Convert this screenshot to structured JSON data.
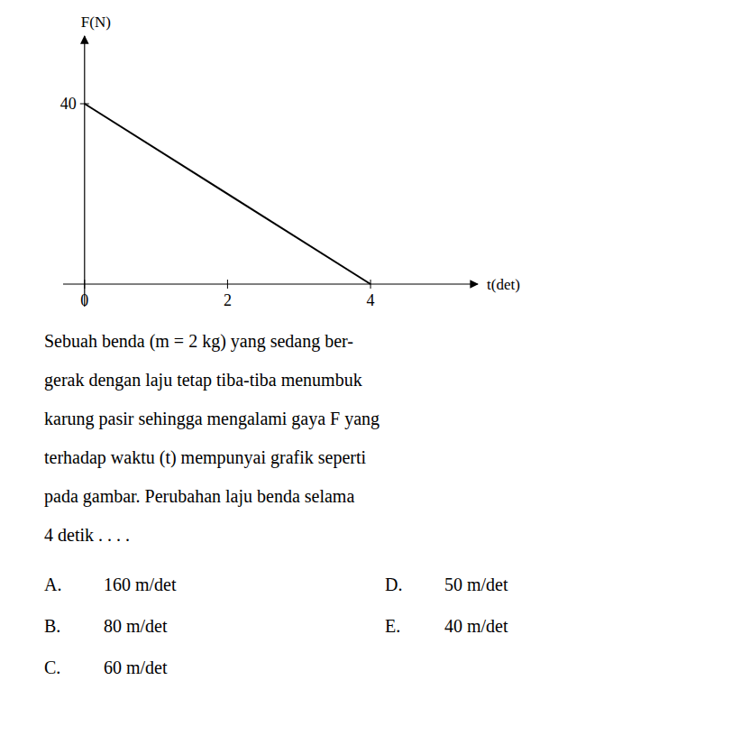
{
  "chart_data": {
    "type": "line",
    "x": [
      0,
      4
    ],
    "values": [
      40,
      0
    ],
    "color": "#000000",
    "xlabel": "t(det)",
    "ylabel": "F(N)",
    "xlim": [
      -0.3,
      5.5
    ],
    "ylim": [
      -5,
      55
    ],
    "xticks": [
      0,
      2,
      4
    ],
    "yticks": [
      40
    ],
    "grid": false,
    "annotations": {
      "paragraph": [
        "Sebuah benda (m = 2 kg) yang sedang ber-",
        "gerak dengan laju tetap tiba-tiba menumbuk",
        "karung pasir sehingga mengalami gaya F yang",
        "terhadap waktu (t) mempunyai grafik seperti",
        "pada gambar. Perubahan laju benda selama",
        "4 detik . . . ."
      ],
      "options": [
        {
          "label": "A.",
          "text": "160 m/det"
        },
        {
          "label": "B.",
          "text": "80 m/det"
        },
        {
          "label": "C.",
          "text": "60 m/det"
        },
        {
          "label": "D.",
          "text": "50 m/det"
        },
        {
          "label": "E.",
          "text": "40 m/det"
        }
      ]
    }
  }
}
